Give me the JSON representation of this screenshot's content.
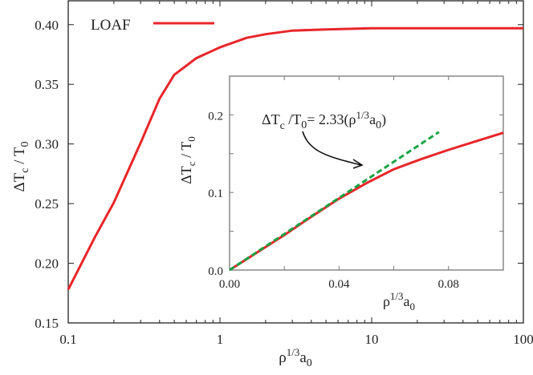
{
  "chart_data": [
    {
      "type": "line",
      "xscale": "log",
      "xlim": [
        0.1,
        100
      ],
      "ylim": [
        0.15,
        0.42
      ],
      "xticks": [
        "0.1",
        "1",
        "10",
        "100"
      ],
      "yticks": [
        "0.15",
        "0.20",
        "0.25",
        "0.30",
        "0.35",
        "0.40"
      ],
      "xlabel": {
        "base": "ρ",
        "sup": "1/3",
        "main": "a",
        "sub": "0"
      },
      "ylabel": {
        "a": "ΔT",
        "sub1": "c",
        "b": " / T",
        "sub2": "0"
      },
      "grid": false,
      "legend": {
        "position": "top-left",
        "entries": [
          "LOAF"
        ]
      },
      "series": [
        {
          "name": "LOAF",
          "color": "#e8262a",
          "x": [
            0.1,
            0.15,
            0.2,
            0.3,
            0.4,
            0.5,
            0.7,
            1,
            1.5,
            2,
            3,
            5,
            10,
            30,
            100
          ],
          "y": [
            0.178,
            0.222,
            0.251,
            0.301,
            0.338,
            0.358,
            0.372,
            0.381,
            0.389,
            0.392,
            0.395,
            0.396,
            0.397,
            0.397,
            0.397
          ]
        }
      ]
    },
    {
      "type": "line",
      "inset": true,
      "xlim": [
        0,
        0.1
      ],
      "ylim": [
        0,
        0.25
      ],
      "xticks": [
        "0.00",
        "0.04",
        "0.08"
      ],
      "yticks": [
        "0.0",
        "0.1",
        "0.2"
      ],
      "xlabel": {
        "base": "ρ",
        "sup": "1/3",
        "main": "a",
        "sub": "0"
      },
      "ylabel": {
        "a": "ΔT",
        "sub1": "c",
        "b": " / T",
        "sub2": "0"
      },
      "grid": false,
      "annotation": {
        "a": "ΔT",
        "sub1": "c",
        "b": " /T",
        "sub2": "0",
        "c": "= 2.33(ρ",
        "sup": "1/3",
        "d": "a",
        "sub3": "0",
        "e": ")"
      },
      "series": [
        {
          "color": "#e8262a",
          "style": "solid",
          "x": [
            0,
            0.01,
            0.02,
            0.03,
            0.04,
            0.05,
            0.06,
            0.07,
            0.08,
            0.09,
            0.1
          ],
          "y": [
            0,
            0.0225,
            0.045,
            0.069,
            0.092,
            0.112,
            0.13,
            0.143,
            0.155,
            0.166,
            0.177
          ]
        },
        {
          "color": "#1aa344",
          "style": "dashed",
          "x": [
            0,
            0.0765
          ],
          "y": [
            0,
            0.178
          ]
        }
      ]
    }
  ]
}
